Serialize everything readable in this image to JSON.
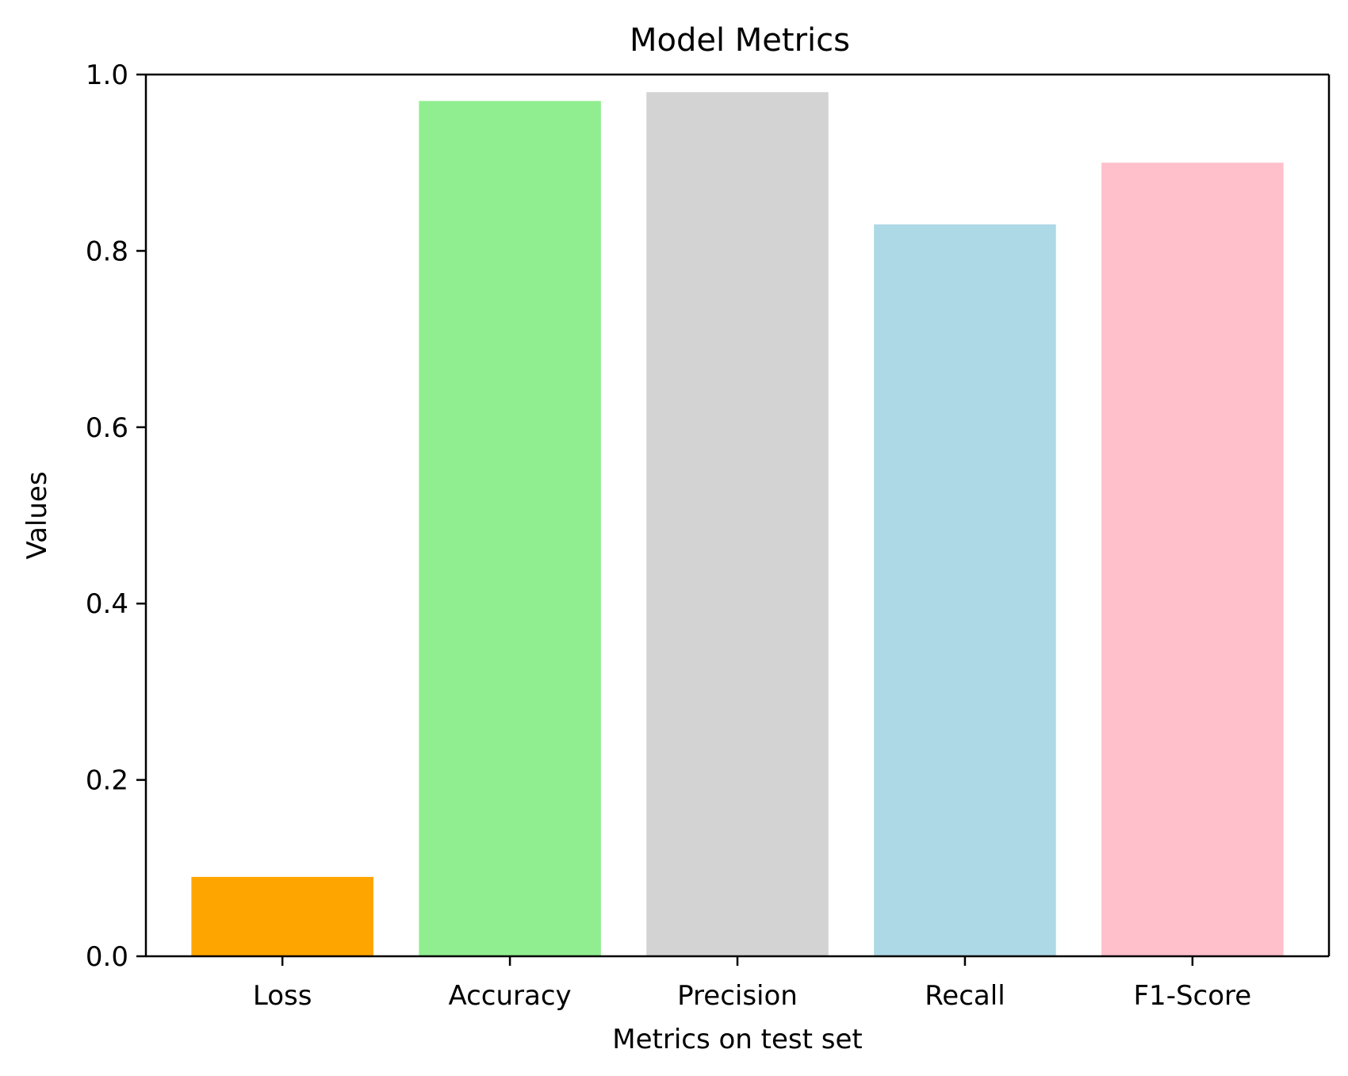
{
  "chart_data": {
    "type": "bar",
    "title": "Model Metrics",
    "xlabel": "Metrics on test set",
    "ylabel": "Values",
    "categories": [
      "Loss",
      "Accuracy",
      "Precision",
      "Recall",
      "F1-Score"
    ],
    "values": [
      0.09,
      0.97,
      0.98,
      0.83,
      0.9
    ],
    "colors": [
      "#ffa500",
      "#90ee90",
      "#d3d3d3",
      "#add8e6",
      "#ffc0cb"
    ],
    "ylim": [
      0.0,
      1.0
    ],
    "yticks": [
      "0.0",
      "0.2",
      "0.4",
      "0.6",
      "0.8",
      "1.0"
    ],
    "grid": false,
    "legend": "none"
  }
}
